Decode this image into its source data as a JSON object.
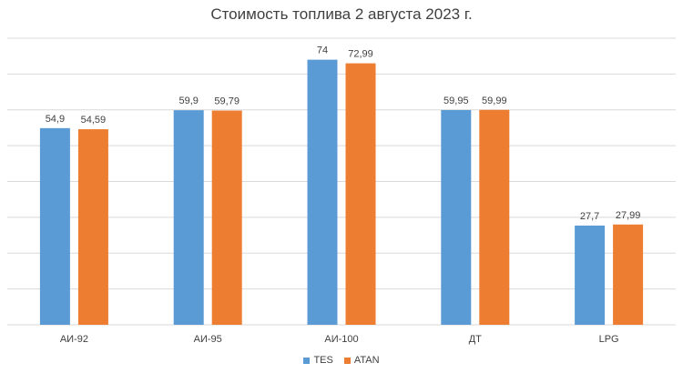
{
  "chart_data": {
    "type": "bar",
    "title": "Стоимость топлива 2 августа 2023 г.",
    "categories": [
      "АИ-92",
      "АИ-95",
      "АИ-100",
      "ДТ",
      "LPG"
    ],
    "series": [
      {
        "name": "TES",
        "color": "#5b9bd5",
        "values": [
          54.9,
          59.9,
          74,
          59.95,
          27.7
        ],
        "labels": [
          "54,9",
          "59,9",
          "74",
          "59,95",
          "27,7"
        ]
      },
      {
        "name": "ATAN",
        "color": "#ed7d31",
        "values": [
          54.59,
          59.79,
          72.99,
          59.99,
          27.99
        ],
        "labels": [
          "54,59",
          "59,79",
          "72,99",
          "59,99",
          "27,99"
        ]
      }
    ],
    "ylim": [
      0,
      80
    ],
    "ytick_step": 10,
    "grid": true,
    "y_axis_labels_visible": false,
    "legend_position": "bottom"
  }
}
